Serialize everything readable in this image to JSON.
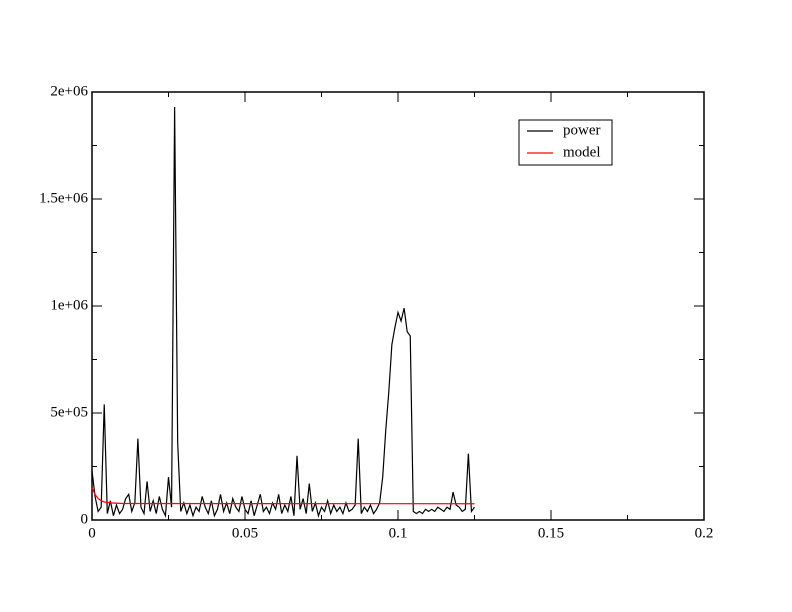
{
  "chart_data": {
    "type": "line",
    "xlim": [
      0,
      0.2
    ],
    "xticks": [
      0,
      0.05,
      0.1,
      0.15,
      0.2
    ],
    "xminorticks": [
      0.025,
      0.075,
      0.125,
      0.175
    ],
    "ylim": [
      0,
      2000000
    ],
    "yticks": [
      0,
      {
        "value": 500000,
        "label": "5e+05"
      },
      {
        "value": 1000000,
        "label": "1e+06"
      },
      {
        "value": 1500000,
        "label": "1.5e+06"
      },
      {
        "value": 2000000,
        "label": "2e+06"
      }
    ],
    "yminorticks": [
      250000,
      750000,
      1250000,
      1750000
    ],
    "legend": "upper right",
    "series": [
      {
        "name": "power",
        "color": "#000000",
        "x": [
          0,
          0.001,
          0.002,
          0.003,
          0.004,
          0.005,
          0.006,
          0.007,
          0.008,
          0.009,
          0.01,
          0.011,
          0.012,
          0.013,
          0.014,
          0.015,
          0.016,
          0.017,
          0.018,
          0.019,
          0.02,
          0.021,
          0.022,
          0.023,
          0.024,
          0.025,
          0.026,
          0.027,
          0.028,
          0.029,
          0.03,
          0.031,
          0.032,
          0.033,
          0.034,
          0.035,
          0.036,
          0.037,
          0.038,
          0.039,
          0.04,
          0.041,
          0.042,
          0.043,
          0.044,
          0.045,
          0.046,
          0.047,
          0.048,
          0.049,
          0.05,
          0.051,
          0.052,
          0.053,
          0.054,
          0.055,
          0.056,
          0.057,
          0.058,
          0.059,
          0.06,
          0.061,
          0.062,
          0.063,
          0.064,
          0.065,
          0.066,
          0.067,
          0.068,
          0.069,
          0.07,
          0.071,
          0.072,
          0.073,
          0.074,
          0.075,
          0.076,
          0.077,
          0.078,
          0.079,
          0.08,
          0.081,
          0.082,
          0.083,
          0.084,
          0.085,
          0.086,
          0.087,
          0.088,
          0.089,
          0.09,
          0.091,
          0.092,
          0.093,
          0.094,
          0.095,
          0.096,
          0.097,
          0.098,
          0.099,
          0.1,
          0.101,
          0.102,
          0.103,
          0.104,
          0.105,
          0.106,
          0.107,
          0.108,
          0.109,
          0.11,
          0.111,
          0.112,
          0.113,
          0.114,
          0.115,
          0.116,
          0.117,
          0.118,
          0.119,
          0.12,
          0.121,
          0.122,
          0.123,
          0.124,
          0.125
        ],
        "values": [
          230000,
          110000,
          40000,
          60000,
          540000,
          30000,
          90000,
          20000,
          70000,
          30000,
          50000,
          100000,
          120000,
          40000,
          80000,
          380000,
          60000,
          30000,
          180000,
          40000,
          90000,
          30000,
          110000,
          50000,
          20000,
          200000,
          60000,
          1930000,
          360000,
          40000,
          80000,
          30000,
          70000,
          20000,
          60000,
          40000,
          110000,
          60000,
          30000,
          90000,
          20000,
          50000,
          120000,
          40000,
          80000,
          30000,
          100000,
          60000,
          40000,
          110000,
          50000,
          30000,
          90000,
          20000,
          70000,
          120000,
          40000,
          60000,
          30000,
          80000,
          50000,
          120000,
          30000,
          70000,
          40000,
          110000,
          20000,
          300000,
          50000,
          100000,
          30000,
          170000,
          40000,
          80000,
          20000,
          60000,
          40000,
          90000,
          30000,
          70000,
          40000,
          60000,
          30000,
          80000,
          40000,
          50000,
          70000,
          380000,
          30000,
          60000,
          40000,
          70000,
          30000,
          50000,
          80000,
          200000,
          420000,
          600000,
          820000,
          900000,
          970000,
          930000,
          990000,
          880000,
          860000,
          40000,
          30000,
          40000,
          30000,
          50000,
          40000,
          50000,
          40000,
          60000,
          50000,
          40000,
          60000,
          50000,
          130000,
          70000,
          60000,
          40000,
          50000,
          310000,
          40000,
          60000
        ]
      },
      {
        "name": "model",
        "color": "#ff0000",
        "x": [
          0,
          0.001,
          0.002,
          0.003,
          0.004,
          0.006,
          0.01,
          0.125
        ],
        "values": [
          150000,
          120000,
          100000,
          90000,
          84000,
          80000,
          77000,
          76000
        ]
      }
    ]
  }
}
